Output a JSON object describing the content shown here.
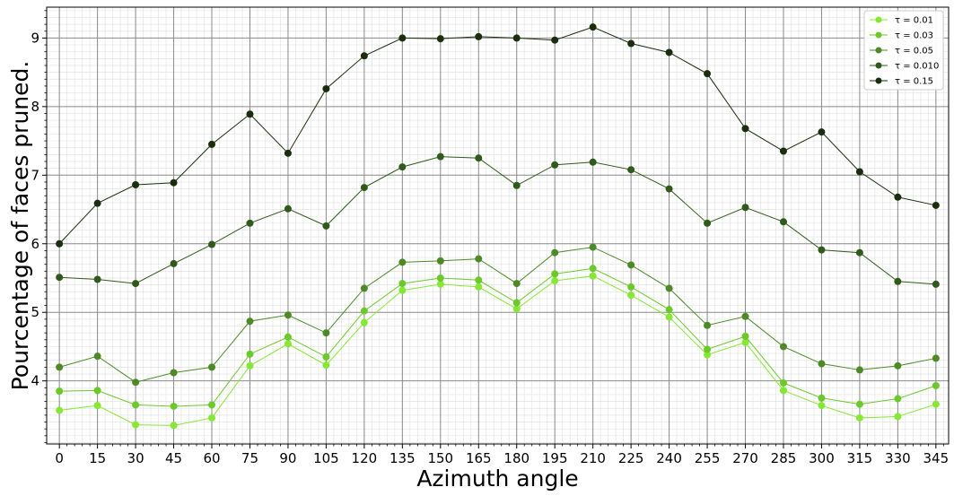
{
  "chart_data": {
    "type": "line",
    "xlabel": "Azimuth angle",
    "ylabel": "Pourcentage of faces pruned.",
    "x": [
      0,
      15,
      30,
      45,
      60,
      75,
      90,
      105,
      120,
      135,
      150,
      165,
      180,
      195,
      210,
      225,
      240,
      255,
      270,
      285,
      300,
      315,
      330,
      345
    ],
    "x_tick_labels": [
      "0",
      "15",
      "30",
      "45",
      "60",
      "75",
      "90",
      "105",
      "120",
      "135",
      "150",
      "165",
      "180",
      "195",
      "210",
      "225",
      "240",
      "255",
      "270",
      "285",
      "300",
      "315",
      "330",
      "345"
    ],
    "xlim": [
      -5,
      350
    ],
    "ylim": [
      3.08,
      9.45
    ],
    "y_ticks": [
      4,
      5,
      6,
      7,
      8,
      9
    ],
    "y_tick_labels": [
      "4",
      "5",
      "6",
      "7",
      "8",
      "9"
    ],
    "grid": true,
    "minor_grid": true,
    "legend_position": "top-right",
    "series": [
      {
        "name": "τ = 0.01",
        "color": "#86e834",
        "values": [
          3.57,
          3.64,
          3.36,
          3.35,
          3.46,
          4.22,
          4.54,
          4.23,
          4.85,
          5.32,
          5.41,
          5.37,
          5.05,
          5.46,
          5.53,
          5.25,
          4.93,
          4.38,
          4.56,
          3.86,
          3.64,
          3.46,
          3.48,
          3.66
        ]
      },
      {
        "name": "τ = 0.03",
        "color": "#6cc92a",
        "values": [
          3.85,
          3.86,
          3.65,
          3.63,
          3.65,
          4.39,
          4.64,
          4.35,
          5.02,
          5.42,
          5.5,
          5.47,
          5.14,
          5.56,
          5.64,
          5.37,
          5.04,
          4.46,
          4.65,
          3.97,
          3.75,
          3.66,
          3.74,
          3.93
        ]
      },
      {
        "name": "τ = 0.05",
        "color": "#4d8a26",
        "values": [
          4.2,
          4.36,
          3.98,
          4.12,
          4.2,
          4.87,
          4.96,
          4.7,
          5.35,
          5.73,
          5.75,
          5.78,
          5.42,
          5.87,
          5.95,
          5.69,
          5.35,
          4.81,
          4.94,
          4.5,
          4.25,
          4.16,
          4.22,
          4.33
        ]
      },
      {
        "name": "τ = 0.010",
        "color": "#2f5a1b",
        "values": [
          5.51,
          5.48,
          5.42,
          5.71,
          5.99,
          6.3,
          6.51,
          6.26,
          6.82,
          7.12,
          7.27,
          7.25,
          6.85,
          7.15,
          7.19,
          7.08,
          6.8,
          6.3,
          6.53,
          6.32,
          5.91,
          5.87,
          5.45,
          5.41
        ]
      },
      {
        "name": "τ = 0.15",
        "color": "#1a2e0e",
        "values": [
          6.0,
          6.59,
          6.86,
          6.89,
          7.45,
          7.89,
          7.32,
          8.26,
          8.74,
          9.0,
          8.99,
          9.02,
          9.0,
          8.97,
          9.16,
          8.92,
          8.79,
          8.48,
          7.68,
          7.35,
          7.63,
          7.05,
          6.68,
          6.56
        ]
      }
    ]
  }
}
